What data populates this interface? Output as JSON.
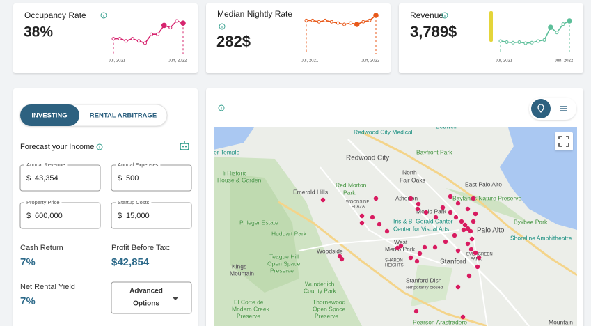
{
  "metrics": [
    {
      "title": "Occupancy Rate",
      "value": "38%",
      "sparkline": {
        "start_label": "Jul, 2021",
        "end_label": "Jun, 2022",
        "color": "#d6246e",
        "values": [
          31,
          31,
          30,
          31,
          30,
          29,
          33,
          33,
          37,
          36,
          39,
          38
        ]
      }
    },
    {
      "title": "Median Nightly Rate",
      "value": "282$",
      "sparkline": {
        "start_label": "Jul, 2021",
        "end_label": "Jun, 2022",
        "color": "#e8591a",
        "values": [
          286,
          286,
          285,
          286,
          285,
          284,
          283,
          284,
          283,
          285,
          286,
          290
        ]
      }
    },
    {
      "title": "Revenue",
      "value": "3,789$",
      "sparkline": {
        "start_label": "Jul, 2021",
        "end_label": "Jun, 2022",
        "color": "#5dbf9a",
        "values": [
          2600,
          2500,
          2450,
          2500,
          2400,
          2450,
          2600,
          2700,
          3900,
          3400,
          4200,
          4500
        ]
      }
    }
  ],
  "forecast": {
    "toggle": [
      "INVESTING",
      "RENTAL ARBITRAGE"
    ],
    "title": "Forecast your Income",
    "inputs": [
      {
        "label": "Annual Revenue",
        "prefix": "$",
        "value": "43,354"
      },
      {
        "label": "Annual Expenses",
        "prefix": "$",
        "value": "500"
      },
      {
        "label": "Property Price",
        "prefix": "$",
        "value": "600,000"
      },
      {
        "label": "Startup Costs",
        "prefix": "$",
        "value": "15,000"
      }
    ],
    "results": [
      {
        "label": "Cash Return",
        "value": "7%"
      },
      {
        "label": "Profit Before Tax:",
        "value": "$42,854"
      },
      {
        "label": "Net Rental Yield",
        "value": "7%"
      }
    ],
    "button": [
      "Advanced",
      "Options"
    ]
  },
  "map": {
    "labels": [
      "Redwood City Medical",
      "Bedwell",
      "Bayfront Park",
      "Redwood City",
      "North",
      "Fair Oaks",
      "Emerald Hills",
      "Red Morton",
      "Park",
      "WOODSIDE",
      "PLAZA",
      "Atherton",
      "East Palo Alto",
      "Baylands Nature Preserve",
      "Menlo Park",
      "Iris & B. Gerald Cantor",
      "Center for Visual Arts",
      "Palo Alto",
      "Byxbee Park",
      "Phleger Estate",
      "Huddart Park",
      "Shoreline Amphitheatre",
      "Woodside",
      "West",
      "Menlo Park",
      "SHARON",
      "HEIGHTS",
      "Stanford",
      "EVERGREEN",
      "PARK",
      "Kings",
      "Mountain",
      "Teague Hill",
      "Open Space",
      "Preserve",
      "Stanford Dish",
      "Temporarily closed",
      "Wunderlich",
      "County Park",
      "El Corte de",
      "Madera Creek",
      "Preserve",
      "Thornewood",
      "Open Space",
      "Preserve",
      "Pearson Arastradero",
      "Mountain",
      "er Temple",
      "li Historic",
      "House & Garden"
    ]
  }
}
